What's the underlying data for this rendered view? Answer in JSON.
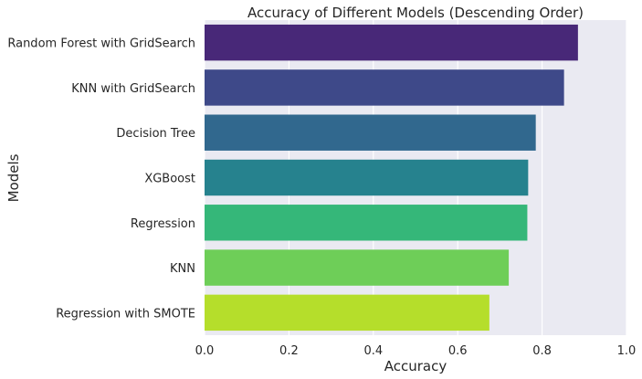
{
  "chart_data": {
    "type": "bar",
    "orientation": "horizontal",
    "title": "Accuracy of Different Models (Descending Order)",
    "xlabel": "Accuracy",
    "ylabel": "Models",
    "xlim": [
      0,
      1
    ],
    "xticks": [
      "0.0",
      "0.2",
      "0.4",
      "0.6",
      "0.8",
      "1.0"
    ],
    "grid": true,
    "categories": [
      "Random Forest with GridSearch",
      "KNN with GridSearch",
      "Decision Tree",
      "XGBoost",
      "Regression",
      "KNN",
      "Regression with SMOTE"
    ],
    "values": [
      0.885,
      0.852,
      0.785,
      0.767,
      0.765,
      0.721,
      0.675
    ],
    "colors": [
      "#482878",
      "#3e4989",
      "#31688e",
      "#26828e",
      "#35b779",
      "#6ece58",
      "#b5de2b"
    ],
    "background": "#eaeaf2"
  }
}
